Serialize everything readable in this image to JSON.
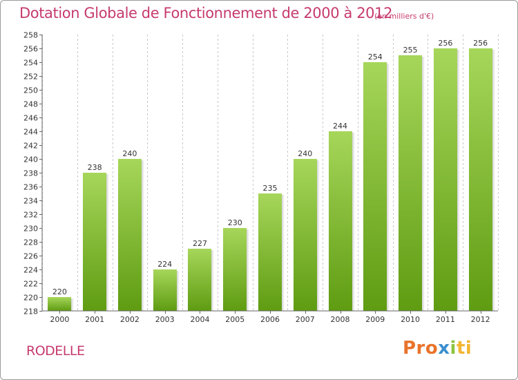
{
  "chart_data": {
    "type": "bar",
    "title": "Dotation Globale de Fonctionnement de 2000 à 2012",
    "subtitle": "(en milliers d'€)",
    "categories": [
      "2000",
      "2001",
      "2002",
      "2003",
      "2004",
      "2005",
      "2006",
      "2007",
      "2008",
      "2009",
      "2010",
      "2011",
      "2012"
    ],
    "values": [
      220,
      238,
      240,
      224,
      227,
      230,
      235,
      240,
      244,
      254,
      255,
      256,
      256
    ],
    "ylim": [
      218,
      258
    ],
    "ytick_step": 2,
    "yticks": [
      "218",
      "220",
      "222",
      "224",
      "226",
      "228",
      "230",
      "232",
      "234",
      "236",
      "238",
      "240",
      "242",
      "244",
      "246",
      "248",
      "250",
      "252",
      "254",
      "256",
      "258"
    ],
    "xlabel": "",
    "ylabel": "",
    "grid": "vertical-dashed",
    "colors": {
      "bar_top": "#a6d65a",
      "bar_bottom": "#5f9c12",
      "text": "#c63a6e"
    }
  },
  "footer": {
    "commune": "RODELLE",
    "brand_letters": [
      "Pro",
      "x",
      "i",
      "ti"
    ]
  }
}
